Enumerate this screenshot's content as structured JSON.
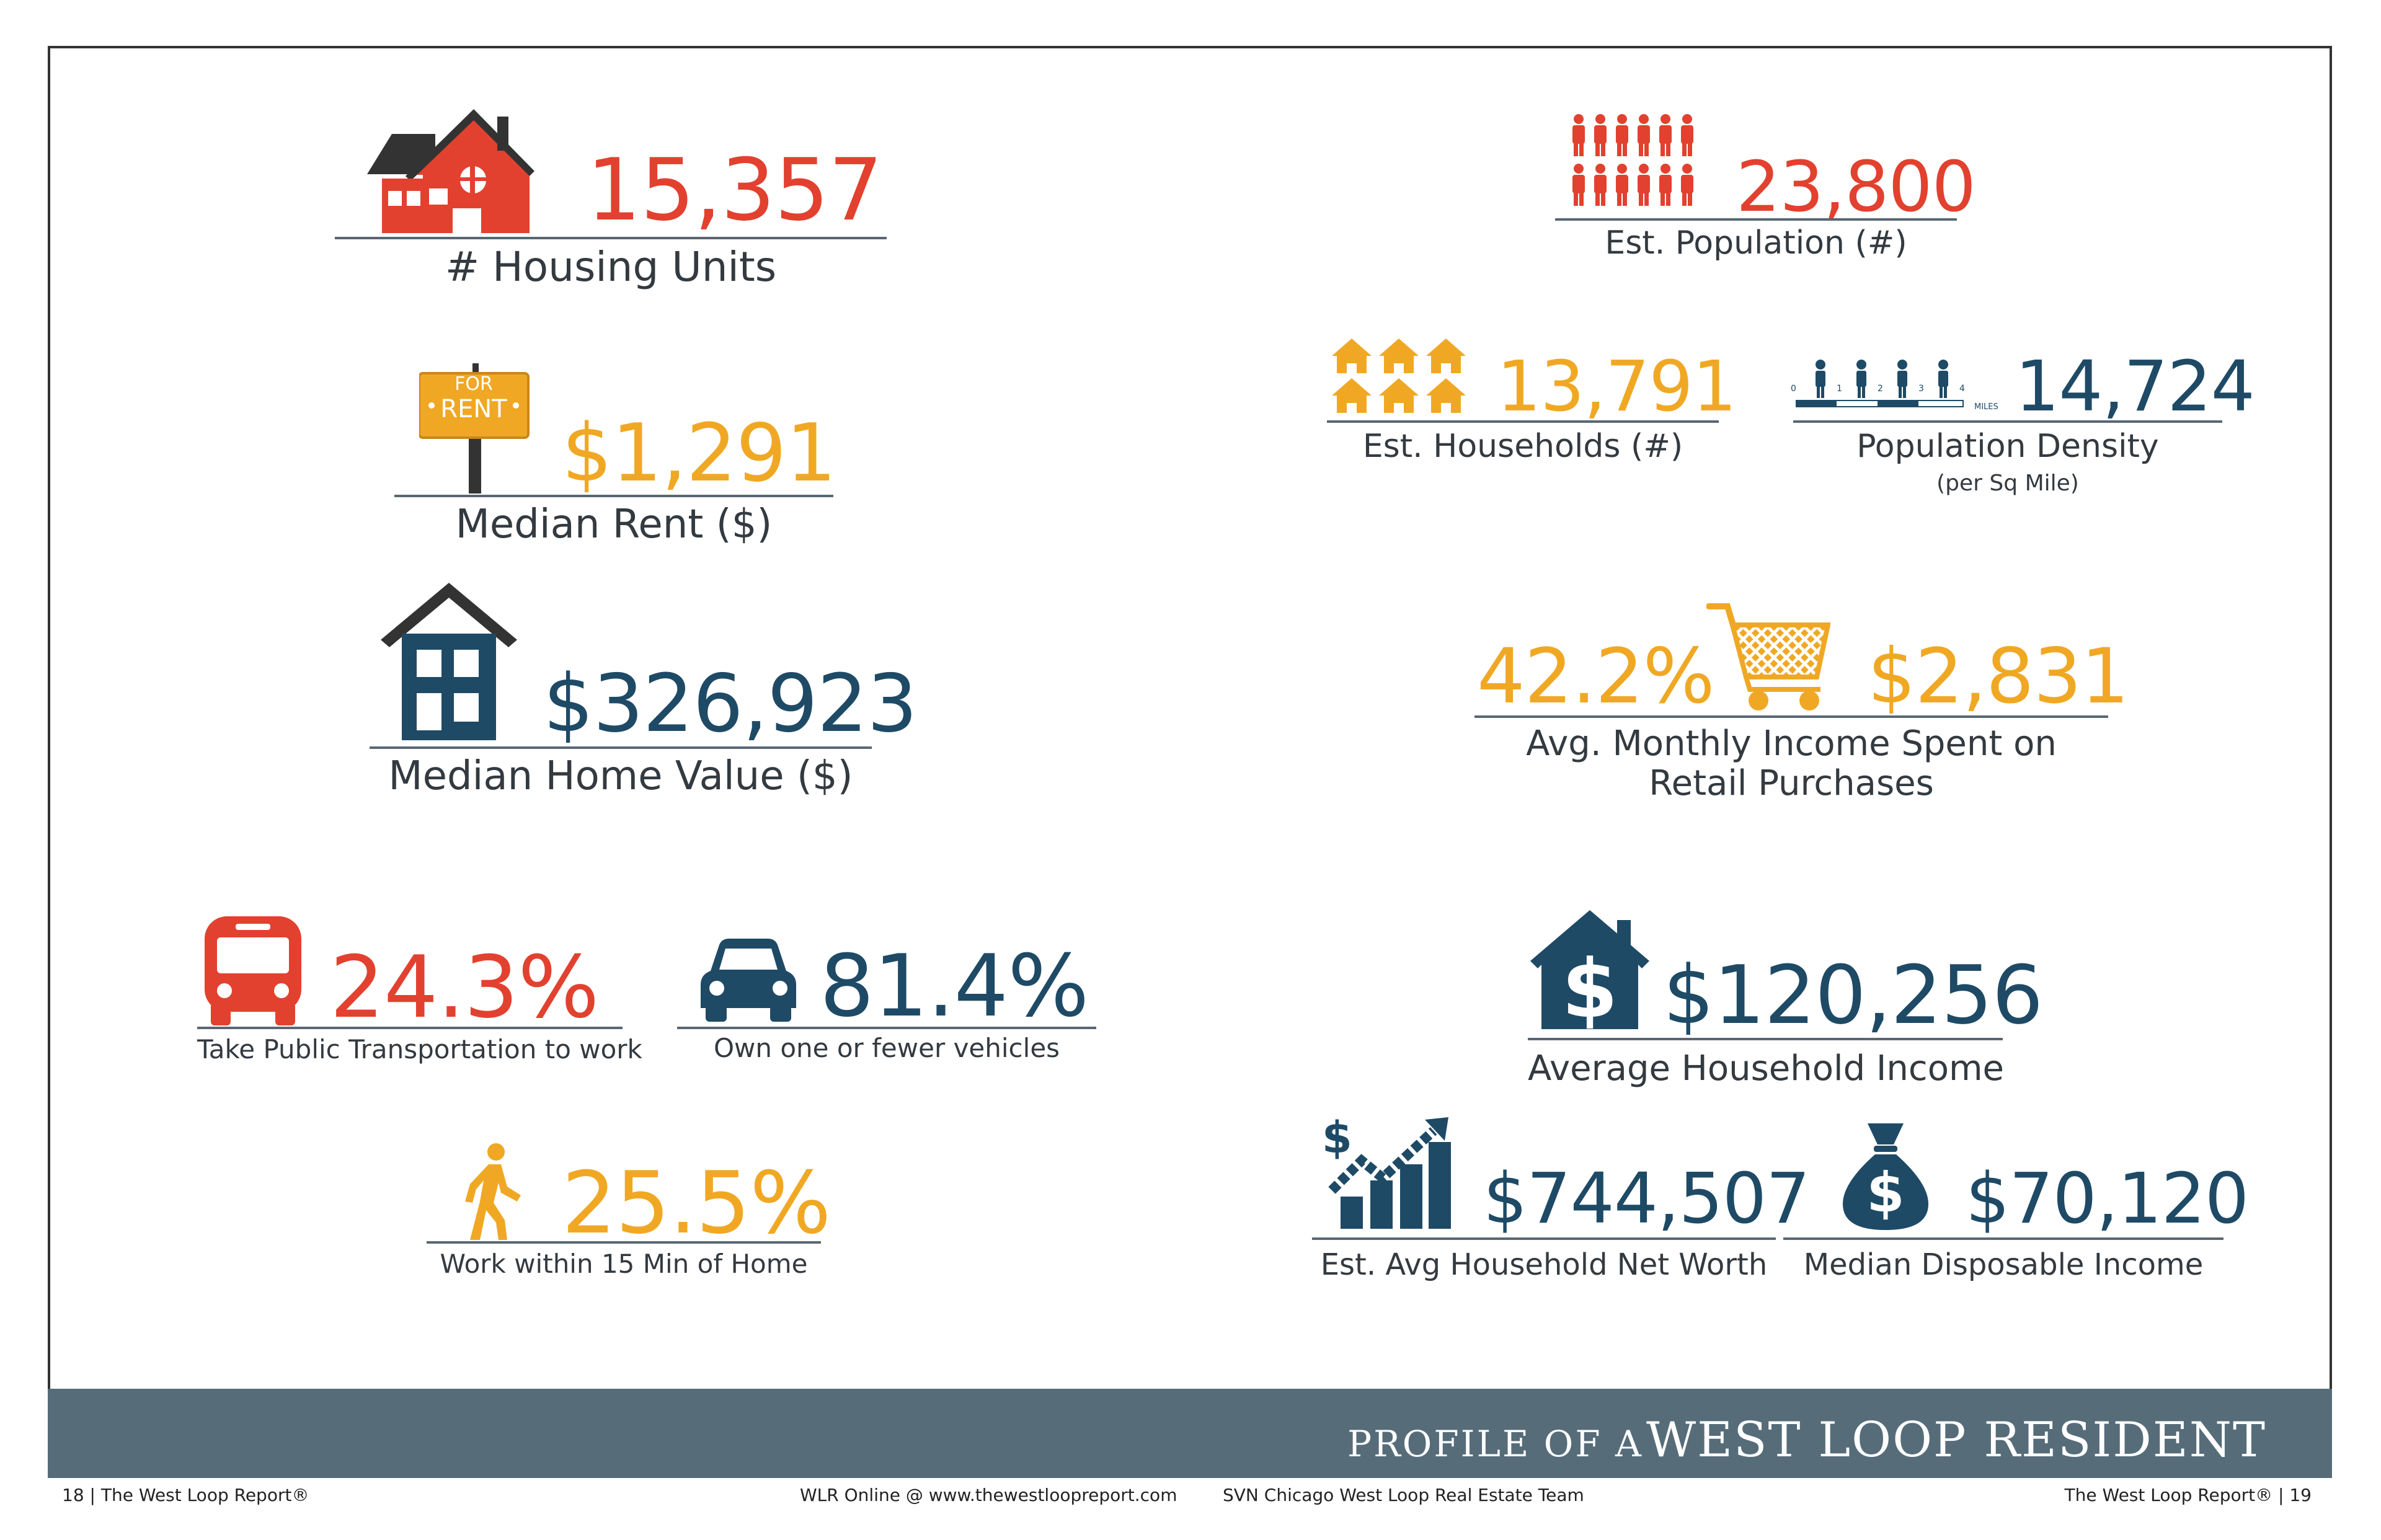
{
  "stats": {
    "housing_units": {
      "value": "15,357",
      "label": "# Housing Units"
    },
    "median_rent": {
      "value": "$1,291",
      "label": "Median Rent ($)",
      "sign_top": "FOR",
      "sign_bottom": "RENT"
    },
    "median_home_value": {
      "value": "$326,923",
      "label": "Median Home Value ($)"
    },
    "public_transport": {
      "value": "24.3%",
      "label": "Take Public Transportation to work"
    },
    "vehicles": {
      "value": "81.4%",
      "label": "Own one or fewer vehicles"
    },
    "walk": {
      "value": "25.5%",
      "label": "Work within 15 Min of Home"
    },
    "population": {
      "value": "23,800",
      "label": "Est. Population (#)"
    },
    "households": {
      "value": "13,791",
      "label": "Est. Households (#)"
    },
    "density": {
      "value": "14,724",
      "label": "Population Density",
      "sublabel": "(per Sq Mile)",
      "scale_ticks": [
        "0",
        "1",
        "2",
        "3",
        "4"
      ],
      "scale_unit": "MILES"
    },
    "retail": {
      "percent": "42.2%",
      "amount": "$2,831",
      "label_line1": "Avg. Monthly Income Spent on",
      "label_line2": "Retail Purchases"
    },
    "avg_household_income": {
      "value": "$120,256",
      "label": "Average Household Income"
    },
    "net_worth": {
      "value": "$744,507",
      "label": "Est. Avg Household Net Worth"
    },
    "disposable_income": {
      "value": "$70,120",
      "label": "Median Disposable Income"
    }
  },
  "banner": {
    "small": "PROFILE OF A",
    "big": "WEST LOOP RESIDENT"
  },
  "footer": {
    "left": "18  |  The West Loop Report®",
    "center1": "WLR Online @ www.thewestloopreport.com",
    "center2": "SVN Chicago West Loop Real Estate Team",
    "right": "The West Loop Report®  |  19"
  },
  "colors": {
    "red": "#e2412f",
    "orange": "#f0a824",
    "navy": "#1e4a66",
    "banner": "#566c79"
  },
  "icons": [
    "house-icon",
    "for-rent-sign-icon",
    "home-value-house-icon",
    "bus-icon",
    "car-icon",
    "walking-person-icon",
    "people-icon",
    "houses-icon",
    "density-scale-icon",
    "shopping-cart-icon",
    "dollar-house-icon",
    "growth-chart-icon",
    "money-bag-icon"
  ]
}
